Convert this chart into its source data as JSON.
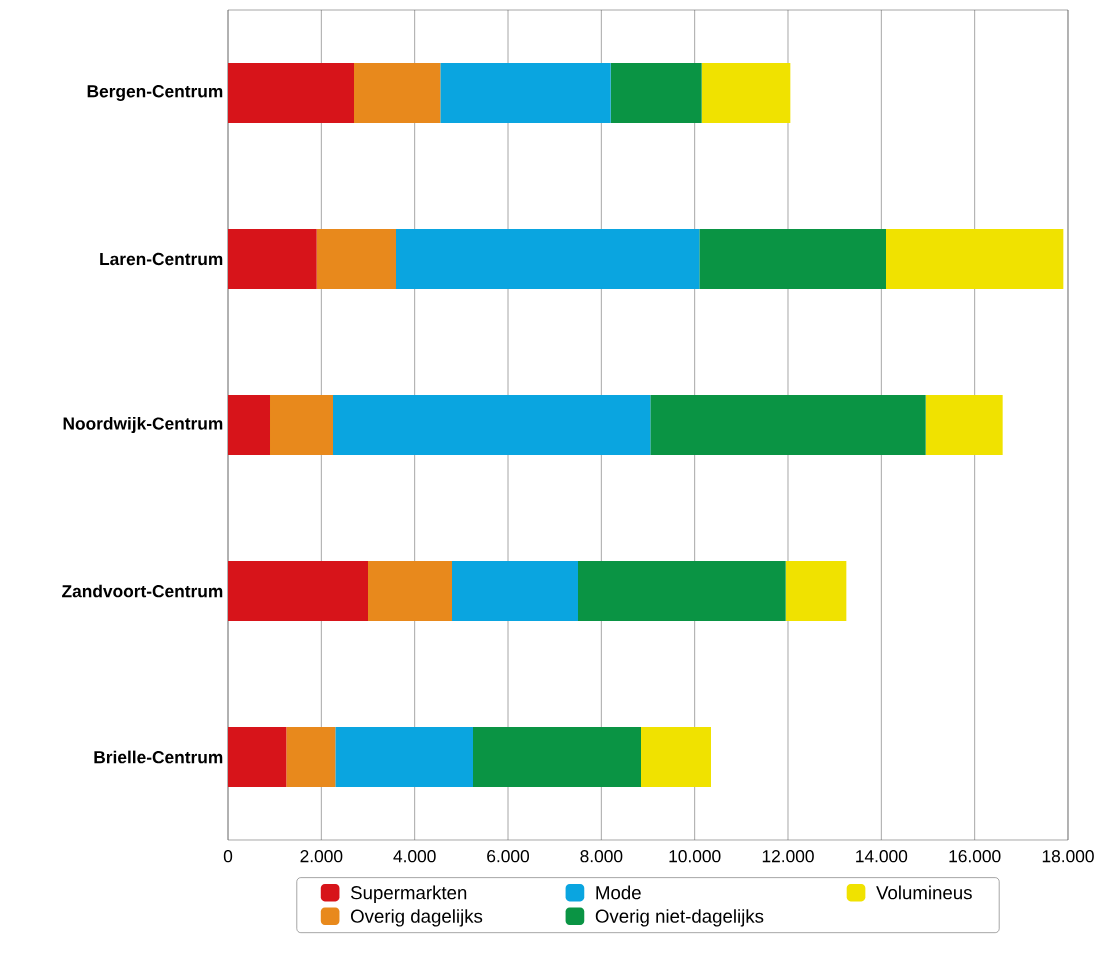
{
  "chart_data": {
    "type": "bar",
    "orientation": "horizontal",
    "stacked": true,
    "categories": [
      "Bergen-Centrum",
      "Laren-Centrum",
      "Noordwijk-Centrum",
      "Zandvoort-Centrum",
      "Brielle-Centrum"
    ],
    "series": [
      {
        "name": "Supermarkten",
        "color": "#d7141a",
        "values": [
          2700,
          1900,
          900,
          3000,
          1250
        ]
      },
      {
        "name": "Overig dagelijks",
        "color": "#e8891c",
        "values": [
          1850,
          1700,
          1350,
          1800,
          1050
        ]
      },
      {
        "name": "Mode",
        "color": "#0aa5e0",
        "values": [
          3650,
          6500,
          6800,
          2700,
          2950
        ]
      },
      {
        "name": "Overig niet-dagelijks",
        "color": "#0a9444",
        "values": [
          1950,
          4000,
          5900,
          4450,
          3600
        ]
      },
      {
        "name": "Volumineus",
        "color": "#f0e200",
        "values": [
          1900,
          3800,
          1650,
          1300,
          1500
        ]
      }
    ],
    "xlim": [
      0,
      18000
    ],
    "xticks": [
      0,
      {
        "value": 2000,
        "label": "2.000"
      },
      {
        "value": 4000,
        "label": "4.000"
      },
      {
        "value": 6000,
        "label": "6.000"
      },
      {
        "value": 8000,
        "label": "8.000"
      },
      {
        "value": 10000,
        "label": "10.000"
      },
      {
        "value": 12000,
        "label": "12.000"
      },
      {
        "value": 14000,
        "label": "14.000"
      },
      {
        "value": 16000,
        "label": "16.000"
      },
      {
        "value": 18000,
        "label": "18.000"
      }
    ],
    "grid": "x",
    "legend": "bottom"
  }
}
